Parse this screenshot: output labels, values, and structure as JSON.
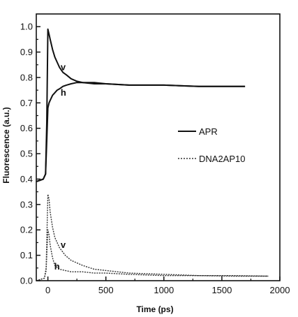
{
  "chart_data": {
    "type": "line",
    "title": "",
    "xlabel": "Time (ps)",
    "ylabel": "Fluorescence (a.u.)",
    "xlim": [
      -100,
      2000
    ],
    "ylim": [
      0.0,
      1.05
    ],
    "xticks": [
      "0",
      "500",
      "1000",
      "1500",
      "2000"
    ],
    "yticks": [
      "0.0",
      "0.1",
      "0.2",
      "0.3",
      "0.4",
      "0.5",
      "0.6",
      "0.7",
      "0.8",
      "0.9",
      "1.0"
    ],
    "grid": false,
    "legend_position": "center-right",
    "legend": [
      {
        "label": "APR",
        "style": "solid"
      },
      {
        "label": "DNA2AP10",
        "style": "dotted"
      }
    ],
    "annotations": [
      {
        "text": "v",
        "x": 110,
        "y": 0.84
      },
      {
        "text": "h",
        "x": 110,
        "y": 0.74
      },
      {
        "text": "v",
        "x": 110,
        "y": 0.14
      },
      {
        "text": "h",
        "x": 55,
        "y": 0.055
      }
    ],
    "series": [
      {
        "name": "APR",
        "style": "solid",
        "color": "#111111",
        "x": [
          -100,
          -40,
          -20,
          -10,
          0,
          10,
          20,
          40,
          60,
          80,
          100,
          130,
          160,
          200,
          250,
          300,
          400,
          500,
          700,
          1000,
          1300,
          1700
        ],
        "y": [
          0.39,
          0.4,
          0.42,
          0.62,
          0.99,
          0.97,
          0.95,
          0.91,
          0.88,
          0.86,
          0.84,
          0.82,
          0.81,
          0.795,
          0.785,
          0.78,
          0.775,
          0.775,
          0.77,
          0.77,
          0.765,
          0.765
        ]
      },
      {
        "name": "APR",
        "style": "solid",
        "color": "#111111",
        "x": [
          -100,
          -40,
          -20,
          -10,
          0,
          10,
          20,
          40,
          60,
          80,
          100,
          130,
          160,
          200,
          250,
          300,
          400,
          500,
          700,
          1000,
          1300,
          1700
        ],
        "y": [
          0.39,
          0.4,
          0.42,
          0.55,
          0.68,
          0.7,
          0.71,
          0.73,
          0.74,
          0.75,
          0.755,
          0.765,
          0.77,
          0.775,
          0.78,
          0.78,
          0.78,
          0.775,
          0.77,
          0.77,
          0.765,
          0.765
        ]
      },
      {
        "name": "DNA2AP10",
        "style": "dotted",
        "color": "#333333",
        "x": [
          -100,
          -30,
          -15,
          0,
          10,
          20,
          40,
          60,
          100,
          150,
          200,
          300,
          400,
          500,
          700,
          1000,
          1300,
          1600,
          1900
        ],
        "y": [
          0.0,
          0.01,
          0.05,
          0.34,
          0.32,
          0.27,
          0.21,
          0.17,
          0.13,
          0.1,
          0.08,
          0.06,
          0.045,
          0.04,
          0.03,
          0.025,
          0.02,
          0.02,
          0.018
        ]
      },
      {
        "name": "DNA2AP10",
        "style": "dotted",
        "color": "#333333",
        "x": [
          -100,
          -30,
          -15,
          0,
          10,
          20,
          40,
          60,
          100,
          150,
          200,
          300,
          400,
          500,
          700,
          1000,
          1300,
          1600,
          1900
        ],
        "y": [
          0.0,
          0.01,
          0.04,
          0.2,
          0.18,
          0.14,
          0.09,
          0.06,
          0.045,
          0.04,
          0.035,
          0.035,
          0.03,
          0.03,
          0.025,
          0.02,
          0.02,
          0.018,
          0.018
        ]
      }
    ]
  }
}
